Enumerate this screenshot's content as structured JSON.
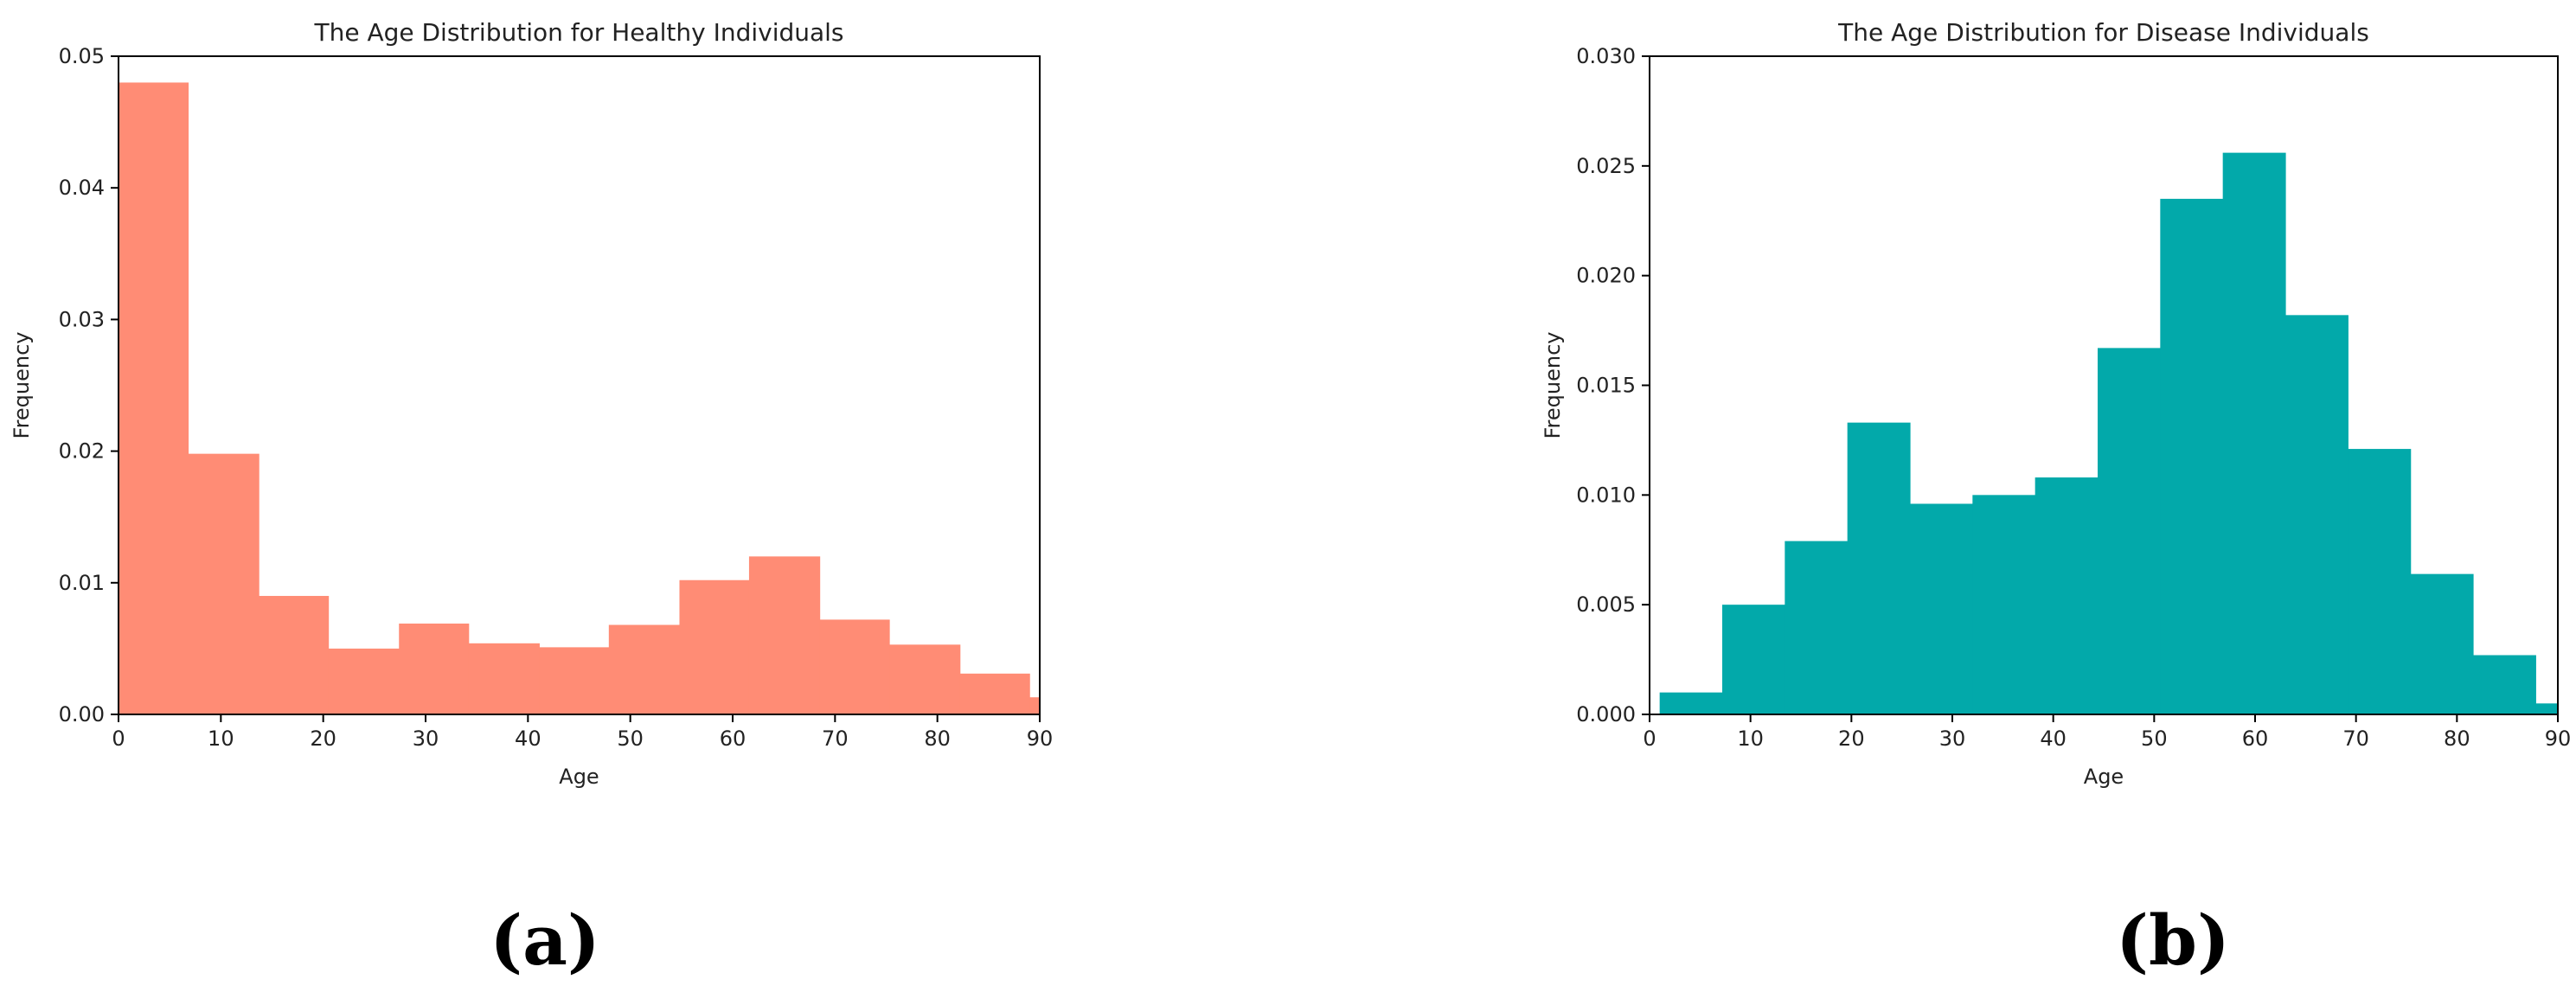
{
  "chart_data": [
    {
      "type": "bar",
      "title": "The Age Distribution for Healthy Individuals",
      "xlabel": "Age",
      "ylabel": "Frequency",
      "xlim": [
        0,
        90
      ],
      "ylim": [
        0,
        0.05
      ],
      "xticks": [
        0,
        10,
        20,
        30,
        40,
        50,
        60,
        70,
        80,
        90
      ],
      "yticks": [
        0.0,
        0.01,
        0.02,
        0.03,
        0.04,
        0.05
      ],
      "ytick_labels": [
        "0.00",
        "0.01",
        "0.02",
        "0.03",
        "0.04",
        "0.05"
      ],
      "color": "#ff8c75",
      "bin_edges": [
        0,
        6.8,
        13.7,
        20.5,
        27.4,
        34.2,
        41.1,
        47.9,
        54.8,
        61.6,
        68.5,
        75.3,
        82.2,
        89.0,
        95.9
      ],
      "values": [
        0.048,
        0.0198,
        0.009,
        0.005,
        0.0069,
        0.0054,
        0.0051,
        0.0068,
        0.0102,
        0.012,
        0.0072,
        0.0053,
        0.0031,
        0.0013
      ],
      "grid": false,
      "panel_label": "(a)"
    },
    {
      "type": "bar",
      "title": "The Age Distribution for Disease Individuals",
      "xlabel": "Age",
      "ylabel": "Frequency",
      "xlim": [
        0,
        90
      ],
      "ylim": [
        0,
        0.03
      ],
      "xticks": [
        0,
        10,
        20,
        30,
        40,
        50,
        60,
        70,
        80,
        90
      ],
      "yticks": [
        0.0,
        0.005,
        0.01,
        0.015,
        0.02,
        0.025,
        0.03
      ],
      "ytick_labels": [
        "0.000",
        "0.005",
        "0.010",
        "0.015",
        "0.020",
        "0.025",
        "0.030"
      ],
      "color": "#02a9aa",
      "bin_edges": [
        1,
        7.2,
        13.4,
        19.6,
        25.8,
        32,
        38.2,
        44.4,
        50.6,
        56.8,
        63,
        69.2,
        75.4,
        81.6,
        87.8,
        94
      ],
      "values": [
        0.001,
        0.005,
        0.0079,
        0.0133,
        0.0096,
        0.01,
        0.0108,
        0.0167,
        0.0235,
        0.0256,
        0.0182,
        0.0121,
        0.0064,
        0.0027,
        0.0005
      ],
      "grid": false,
      "panel_label": "(b)"
    }
  ]
}
